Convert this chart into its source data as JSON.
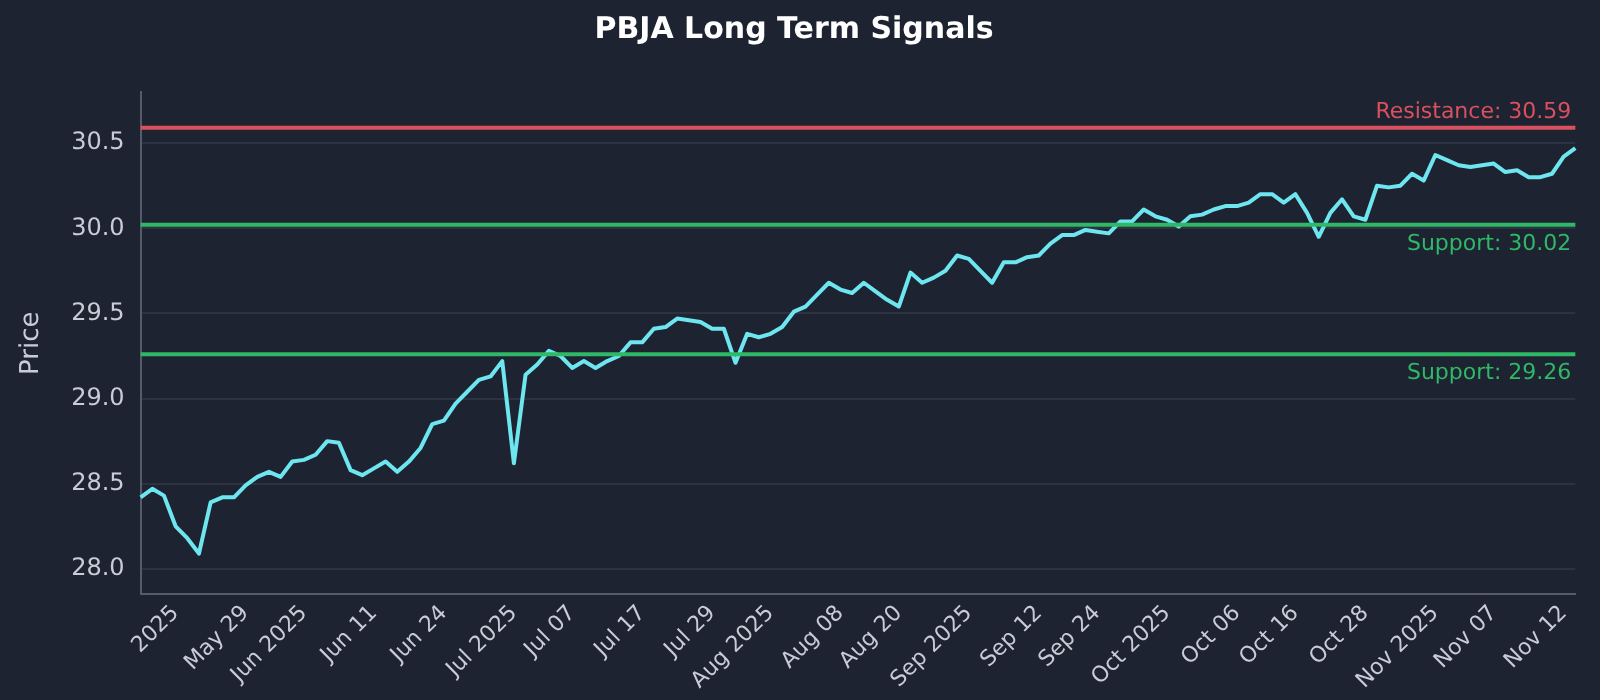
{
  "chart_data": {
    "type": "line",
    "title": "PBJA Long Term Signals",
    "ylabel": "Price",
    "categories": [
      null,
      null,
      null,
      "2025",
      null,
      null,
      null,
      null,
      null,
      "May 29",
      null,
      null,
      null,
      null,
      "Jun 2025",
      null,
      null,
      null,
      null,
      null,
      "Jun 11",
      null,
      null,
      null,
      null,
      null,
      "Jun 24",
      null,
      null,
      null,
      null,
      null,
      "Jul 2025",
      null,
      null,
      null,
      null,
      "Jul 07",
      null,
      null,
      null,
      null,
      null,
      "Jul 17",
      null,
      null,
      null,
      null,
      null,
      "Jul 29",
      null,
      null,
      null,
      null,
      "Aug 2025",
      null,
      null,
      null,
      null,
      null,
      "Aug 08",
      null,
      null,
      null,
      null,
      "Aug 20",
      null,
      null,
      null,
      null,
      null,
      "Sep 2025",
      null,
      null,
      null,
      null,
      null,
      "Sep 12",
      null,
      null,
      null,
      null,
      "Sep 24",
      null,
      null,
      null,
      null,
      null,
      "Oct 2025",
      null,
      null,
      null,
      null,
      null,
      "Oct 06",
      null,
      null,
      null,
      null,
      "Oct 16",
      null,
      null,
      null,
      null,
      null,
      "Oct 28",
      null,
      null,
      null,
      null,
      null,
      "Nov 2025",
      null,
      null,
      null,
      null,
      "Nov 07",
      null,
      null,
      null,
      null,
      null,
      "Nov 12",
      null
    ],
    "series": [
      {
        "color": "#6ee6f0",
        "values": [
          28.42,
          28.47,
          28.43,
          28.25,
          28.18,
          28.09,
          28.39,
          28.42,
          28.42,
          28.49,
          28.54,
          28.57,
          28.54,
          28.63,
          28.64,
          28.67,
          28.75,
          28.74,
          28.58,
          28.55,
          28.59,
          28.63,
          28.57,
          28.63,
          28.71,
          28.85,
          28.87,
          28.97,
          29.04,
          29.11,
          29.13,
          29.22,
          28.62,
          29.14,
          29.2,
          29.28,
          29.25,
          29.18,
          29.22,
          29.18,
          29.22,
          29.25,
          29.33,
          29.33,
          29.41,
          29.42,
          29.47,
          29.46,
          29.45,
          29.41,
          29.41,
          29.21,
          29.38,
          29.36,
          29.38,
          29.42,
          29.51,
          29.54,
          29.61,
          29.68,
          29.64,
          29.62,
          29.68,
          29.63,
          29.58,
          29.54,
          29.74,
          29.68,
          29.71,
          29.75,
          29.84,
          29.82,
          29.75,
          29.68,
          29.8,
          29.8,
          29.83,
          29.84,
          29.91,
          29.96,
          29.96,
          29.99,
          29.98,
          29.97,
          30.04,
          30.04,
          30.11,
          30.07,
          30.05,
          30.01,
          30.07,
          30.08,
          30.11,
          30.13,
          30.13,
          30.15,
          30.2,
          30.2,
          30.15,
          30.2,
          30.09,
          29.95,
          30.09,
          30.17,
          30.07,
          30.05,
          30.25,
          30.24,
          30.25,
          30.32,
          30.28,
          30.43,
          30.4,
          30.37,
          30.36,
          30.37,
          30.38,
          30.33,
          30.34,
          30.3,
          30.3,
          30.32,
          30.42,
          30.47
        ]
      }
    ],
    "ylim": [
      27.85,
      30.8
    ],
    "yticks": [
      {
        "value": 28,
        "label": "28.0"
      },
      28.5,
      {
        "value": 29,
        "label": "29.0"
      },
      29.5,
      {
        "value": 30,
        "label": "30.0"
      },
      30.5
    ],
    "grid": "y",
    "legend": false,
    "marker": "none",
    "line_style": "solid",
    "ref_lines": [
      {
        "axis": "y",
        "value": 30.59,
        "label": "Resistance: 30.59",
        "color": "#d9505e"
      },
      {
        "axis": "y",
        "value": 30.02,
        "label": "Support: 30.02",
        "color": "#2fb866"
      },
      {
        "axis": "y",
        "value": 29.26,
        "label": "Support: 29.26",
        "color": "#2fb866"
      }
    ]
  }
}
